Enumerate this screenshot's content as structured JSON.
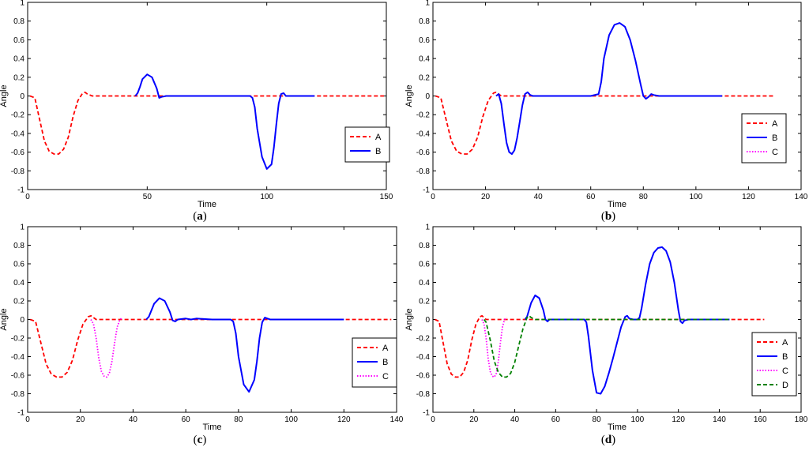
{
  "chart_data": [
    {
      "type": "line",
      "caption": "a",
      "xlabel": "Time",
      "ylabel": "Angle",
      "xlim": [
        0,
        150
      ],
      "ylim": [
        -1,
        1
      ],
      "xticks": [
        0,
        50,
        100,
        150
      ],
      "yticks": [
        -1,
        -0.8,
        -0.6,
        -0.4,
        -0.2,
        0,
        0.2,
        0.4,
        0.6,
        0.8,
        1
      ],
      "grid": false,
      "legend": "bottom-right",
      "series": [
        {
          "name": "A",
          "color": "#ff0000",
          "style": "dashed",
          "x": [
            1,
            3,
            5,
            7,
            9,
            11,
            13,
            15,
            17,
            19,
            21,
            23,
            24,
            25,
            27,
            30,
            40,
            60,
            80,
            100,
            120,
            149
          ],
          "y": [
            0,
            -0.02,
            -0.25,
            -0.48,
            -0.59,
            -0.62,
            -0.62,
            -0.57,
            -0.44,
            -0.22,
            -0.05,
            0.03,
            0.04,
            0.02,
            0,
            0,
            0,
            0,
            0,
            0,
            0,
            0
          ]
        },
        {
          "name": "B",
          "color": "#0000ff",
          "style": "solid",
          "x": [
            45,
            46,
            47,
            48,
            50,
            52,
            54,
            55,
            56,
            58,
            70,
            80,
            93,
            94,
            95,
            96,
            98,
            100,
            102,
            103,
            104,
            105,
            106,
            107,
            108,
            110,
            120
          ],
          "y": [
            0,
            0.03,
            0.1,
            0.18,
            0.23,
            0.2,
            0.08,
            -0.02,
            -0.01,
            0,
            0,
            0,
            0,
            -0.02,
            -0.12,
            -0.35,
            -0.65,
            -0.78,
            -0.73,
            -0.55,
            -0.3,
            -0.08,
            0.02,
            0.03,
            0,
            0,
            0
          ]
        }
      ]
    },
    {
      "type": "line",
      "caption": "b",
      "xlabel": "Time",
      "ylabel": "Angle",
      "xlim": [
        0,
        140
      ],
      "ylim": [
        -1,
        1
      ],
      "xticks": [
        0,
        20,
        40,
        60,
        80,
        100,
        120,
        140
      ],
      "yticks": [
        -1,
        -0.8,
        -0.6,
        -0.4,
        -0.2,
        0,
        0.2,
        0.4,
        0.6,
        0.8,
        1
      ],
      "grid": false,
      "legend": "bottom-right",
      "series": [
        {
          "name": "A",
          "color": "#ff0000",
          "style": "dashed",
          "x": [
            1,
            3,
            5,
            7,
            9,
            11,
            13,
            15,
            17,
            19,
            21,
            23,
            24,
            25,
            26,
            30,
            40,
            60,
            80,
            100,
            120,
            130
          ],
          "y": [
            0,
            -0.02,
            -0.25,
            -0.48,
            -0.59,
            -0.62,
            -0.62,
            -0.57,
            -0.44,
            -0.22,
            -0.05,
            0.03,
            0.04,
            0.02,
            0,
            0,
            0,
            0,
            0,
            0,
            0,
            0
          ]
        },
        {
          "name": "B",
          "color": "#0000ff",
          "style": "solid",
          "x": [
            24,
            25,
            26,
            27,
            28,
            29,
            30,
            31,
            32,
            33,
            34,
            35,
            36,
            37,
            38,
            40,
            50,
            60,
            63,
            64,
            65,
            67,
            69,
            71,
            73,
            75,
            77,
            79,
            80,
            81,
            82,
            83,
            84,
            86,
            90,
            100,
            110
          ],
          "y": [
            0,
            0.02,
            -0.08,
            -0.3,
            -0.5,
            -0.6,
            -0.62,
            -0.58,
            -0.45,
            -0.28,
            -0.1,
            0.02,
            0.04,
            0.01,
            0,
            0,
            0,
            0,
            0.02,
            0.15,
            0.4,
            0.65,
            0.76,
            0.78,
            0.74,
            0.6,
            0.38,
            0.12,
            0.0,
            -0.03,
            -0.01,
            0.02,
            0.01,
            0,
            0,
            0,
            0
          ]
        },
        {
          "name": "C",
          "color": "#ff00ff",
          "style": "dotted",
          "x": [],
          "y": []
        }
      ]
    },
    {
      "type": "line",
      "caption": "c",
      "xlabel": "Time",
      "ylabel": "Angle",
      "xlim": [
        0,
        140
      ],
      "ylim": [
        -1,
        1
      ],
      "xticks": [
        0,
        20,
        40,
        60,
        80,
        100,
        120,
        140
      ],
      "yticks": [
        -1,
        -0.8,
        -0.6,
        -0.4,
        -0.2,
        0,
        0.2,
        0.4,
        0.6,
        0.8,
        1
      ],
      "grid": false,
      "legend": "bottom-right",
      "series": [
        {
          "name": "A",
          "color": "#ff0000",
          "style": "dashed",
          "x": [
            1,
            3,
            5,
            7,
            9,
            11,
            13,
            15,
            17,
            19,
            21,
            23,
            24,
            25,
            26,
            30,
            40,
            60,
            80,
            100,
            120,
            138
          ],
          "y": [
            0,
            -0.02,
            -0.25,
            -0.48,
            -0.59,
            -0.62,
            -0.62,
            -0.57,
            -0.44,
            -0.22,
            -0.05,
            0.03,
            0.04,
            0.02,
            0,
            0,
            0,
            0,
            0,
            0,
            0,
            0
          ]
        },
        {
          "name": "B",
          "color": "#0000ff",
          "style": "solid",
          "x": [
            45,
            46,
            48,
            50,
            52,
            54,
            55,
            56,
            57,
            60,
            62,
            64,
            70,
            77,
            78,
            79,
            80,
            82,
            84,
            86,
            87,
            88,
            89,
            90,
            91,
            92,
            100,
            110,
            120
          ],
          "y": [
            0,
            0.03,
            0.17,
            0.23,
            0.2,
            0.08,
            -0.01,
            -0.02,
            0,
            0.01,
            0,
            0.01,
            0,
            0,
            -0.02,
            -0.15,
            -0.4,
            -0.7,
            -0.78,
            -0.65,
            -0.45,
            -0.2,
            -0.03,
            0.02,
            0.01,
            0,
            0,
            0,
            0
          ]
        },
        {
          "name": "C",
          "color": "#ff00ff",
          "style": "dotted",
          "x": [
            24,
            25,
            26,
            27,
            28,
            29,
            30,
            31,
            32,
            33,
            34,
            35,
            36
          ],
          "y": [
            0,
            -0.05,
            -0.2,
            -0.42,
            -0.56,
            -0.61,
            -0.62,
            -0.58,
            -0.45,
            -0.25,
            -0.08,
            0,
            0.02
          ]
        }
      ]
    },
    {
      "type": "line",
      "caption": "d",
      "xlabel": "Time",
      "ylabel": "Angle",
      "xlim": [
        0,
        180
      ],
      "ylim": [
        -1,
        1
      ],
      "xticks": [
        0,
        20,
        40,
        60,
        80,
        100,
        120,
        140,
        160,
        180
      ],
      "yticks": [
        -1,
        -0.8,
        -0.6,
        -0.4,
        -0.2,
        0,
        0.2,
        0.4,
        0.6,
        0.8,
        1
      ],
      "grid": false,
      "legend": "bottom-right",
      "series": [
        {
          "name": "A",
          "color": "#ff0000",
          "style": "dashed",
          "x": [
            1,
            3,
            5,
            7,
            9,
            11,
            13,
            15,
            17,
            19,
            21,
            23,
            24,
            25,
            26,
            30,
            40,
            60,
            100,
            140,
            162
          ],
          "y": [
            0,
            -0.02,
            -0.25,
            -0.48,
            -0.59,
            -0.62,
            -0.62,
            -0.57,
            -0.44,
            -0.22,
            -0.05,
            0.03,
            0.04,
            0.02,
            0,
            0,
            0,
            0,
            0,
            0,
            0
          ]
        },
        {
          "name": "B",
          "color": "#0000ff",
          "style": "solid",
          "x": [
            45,
            46,
            48,
            50,
            52,
            54,
            55,
            56,
            57,
            60,
            70,
            74,
            75,
            76,
            78,
            80,
            82,
            84,
            86,
            88,
            90,
            92,
            94,
            95,
            96,
            98,
            100,
            101,
            102,
            104,
            106,
            108,
            110,
            112,
            114,
            116,
            118,
            119,
            120,
            121,
            122,
            123,
            125,
            130,
            135,
            140,
            145
          ],
          "y": [
            0,
            0.03,
            0.18,
            0.26,
            0.23,
            0.1,
            0,
            -0.02,
            0,
            0,
            0,
            0,
            -0.03,
            -0.18,
            -0.55,
            -0.79,
            -0.8,
            -0.72,
            -0.58,
            -0.42,
            -0.25,
            -0.08,
            0.03,
            0.04,
            0.01,
            0,
            0,
            0.02,
            0.12,
            0.38,
            0.6,
            0.72,
            0.77,
            0.78,
            0.74,
            0.62,
            0.4,
            0.25,
            0.1,
            -0.02,
            -0.04,
            -0.01,
            0,
            0,
            0,
            0,
            0
          ]
        },
        {
          "name": "C",
          "color": "#ff00ff",
          "style": "dotted",
          "x": [
            24,
            25,
            26,
            27,
            28,
            29,
            30,
            31,
            32,
            33,
            34,
            35,
            36
          ],
          "y": [
            0,
            -0.05,
            -0.2,
            -0.42,
            -0.56,
            -0.61,
            -0.62,
            -0.58,
            -0.45,
            -0.25,
            -0.08,
            0,
            0.02
          ]
        },
        {
          "name": "D",
          "color": "#008000",
          "style": "dashed",
          "x": [
            25,
            26,
            28,
            30,
            32,
            34,
            36,
            38,
            40,
            42,
            44,
            46,
            47,
            48,
            50,
            60,
            80,
            100,
            120,
            140,
            145
          ],
          "y": [
            0,
            -0.03,
            -0.22,
            -0.45,
            -0.57,
            -0.62,
            -0.62,
            -0.58,
            -0.46,
            -0.28,
            -0.1,
            0.02,
            0.04,
            0.02,
            0,
            0,
            0,
            0,
            0,
            0,
            0
          ]
        }
      ]
    }
  ]
}
